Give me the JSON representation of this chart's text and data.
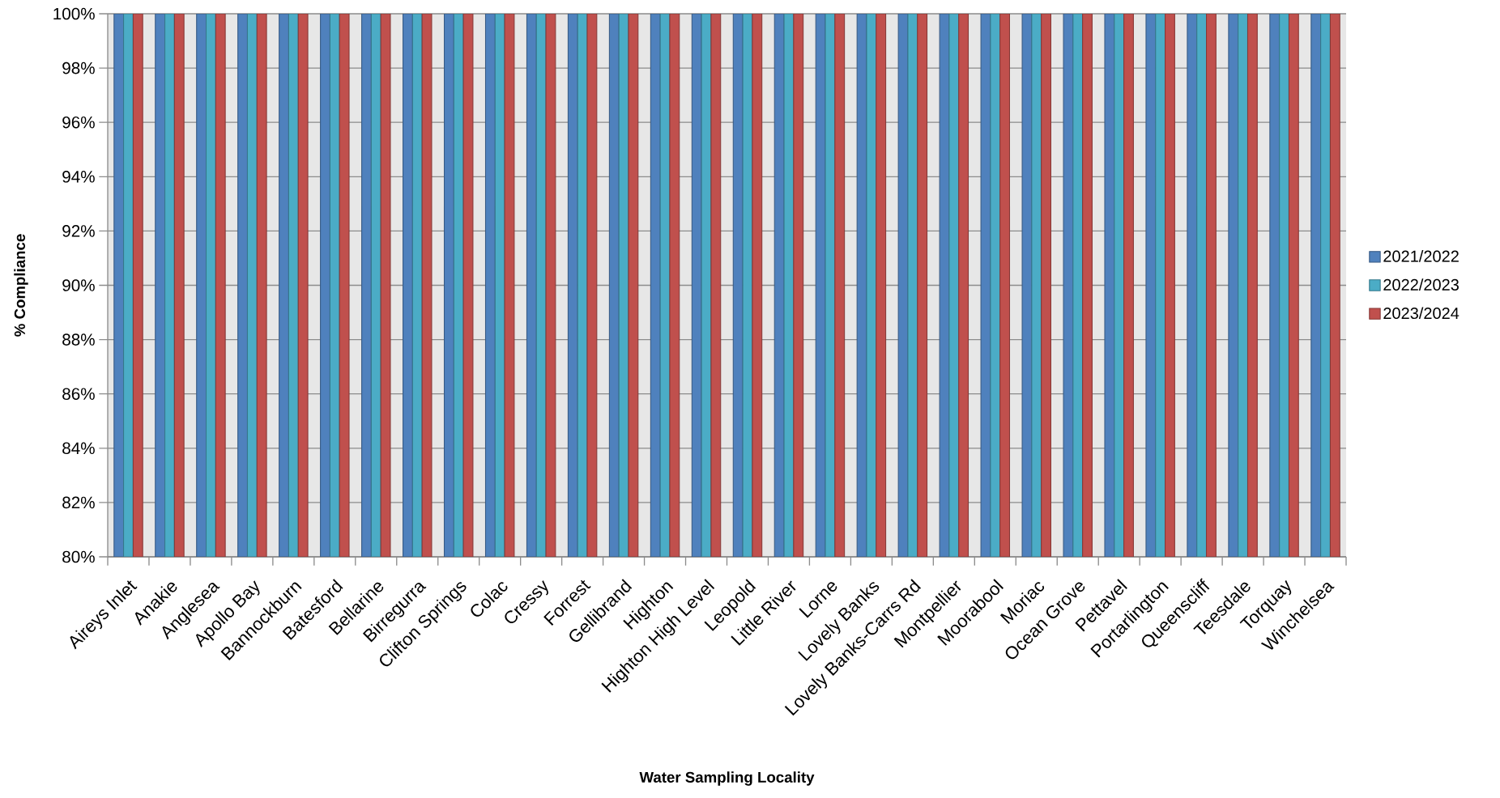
{
  "chart_data": {
    "type": "bar",
    "xlabel": "Water Sampling Locality",
    "ylabel": "% Compliance",
    "categories": [
      "Aireys Inlet",
      "Anakie",
      "Anglesea",
      "Apollo Bay",
      "Bannockburn",
      "Batesford",
      "Bellarine",
      "Birregurra",
      "Clifton Springs",
      "Colac",
      "Cressy",
      "Forrest",
      "Gellibrand",
      "Highton",
      "Highton High Level",
      "Leopold",
      "Little River",
      "Lorne",
      "Lovely Banks",
      "Lovely Banks-Carrs Rd",
      "Montpellier",
      "Moorabool",
      "Moriac",
      "Ocean Grove",
      "Pettavel",
      "Portarlington",
      "Queenscliff",
      "Teesdale",
      "Torquay",
      "Winchelsea"
    ],
    "series": [
      {
        "name": "2021/2022",
        "color": "#4f81bd",
        "values": [
          100,
          100,
          100,
          100,
          100,
          100,
          100,
          100,
          100,
          100,
          100,
          100,
          100,
          100,
          100,
          100,
          100,
          100,
          100,
          100,
          100,
          100,
          100,
          100,
          100,
          100,
          100,
          100,
          100,
          100
        ]
      },
      {
        "name": "2022/2023",
        "color": "#4bacc6",
        "values": [
          100,
          100,
          100,
          100,
          100,
          100,
          100,
          100,
          100,
          100,
          100,
          100,
          100,
          100,
          100,
          100,
          100,
          100,
          100,
          100,
          100,
          100,
          100,
          100,
          100,
          100,
          100,
          100,
          100,
          100
        ]
      },
      {
        "name": "2023/2024",
        "color": "#c0504d",
        "values": [
          100,
          100,
          100,
          100,
          100,
          100,
          100,
          100,
          100,
          100,
          100,
          100,
          100,
          100,
          100,
          100,
          100,
          100,
          100,
          100,
          100,
          100,
          100,
          100,
          100,
          100,
          100,
          100,
          100,
          100
        ]
      }
    ],
    "ylim": [
      80,
      100
    ],
    "yticks": [
      {
        "value": 80,
        "label": "80%"
      },
      {
        "value": 82,
        "label": "82%"
      },
      {
        "value": 84,
        "label": "84%"
      },
      {
        "value": 86,
        "label": "86%"
      },
      {
        "value": 88,
        "label": "88%"
      },
      {
        "value": 90,
        "label": "90%"
      },
      {
        "value": 92,
        "label": "92%"
      },
      {
        "value": 94,
        "label": "94%"
      },
      {
        "value": 96,
        "label": "96%"
      },
      {
        "value": 98,
        "label": "98%"
      },
      {
        "value": 100,
        "label": "100%"
      }
    ],
    "grid": "y",
    "legend": "right"
  }
}
